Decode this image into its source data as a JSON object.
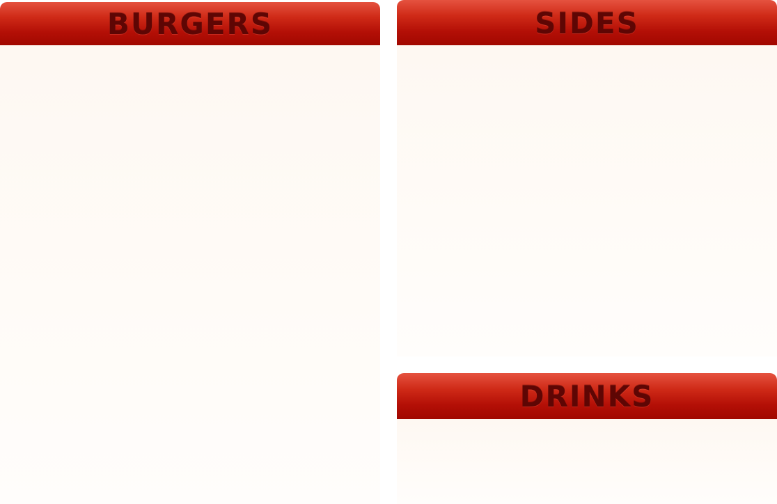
{
  "menu": {
    "sections": {
      "burgers": {
        "title": "BURGERS"
      },
      "sides": {
        "title": "SIDES"
      },
      "drinks": {
        "title": "DRINKS"
      }
    }
  },
  "colors": {
    "header_top": "#e5523f",
    "header_bottom": "#a10800",
    "title_text": "#5e0604",
    "panel_body": "#fef8f2"
  }
}
